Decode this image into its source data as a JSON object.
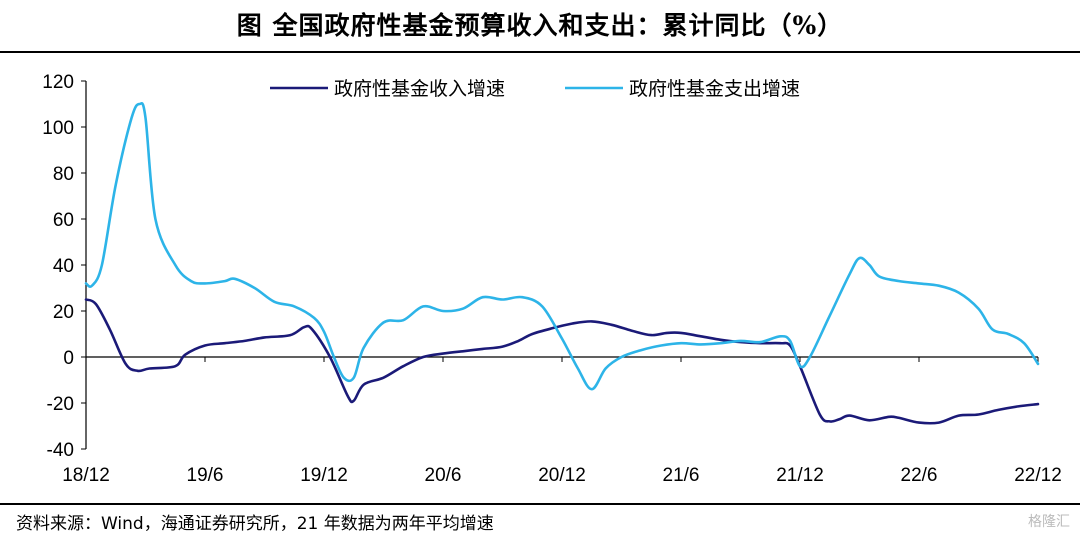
{
  "title": "图  全国政府性基金预算收入和支出：累计同比（%）",
  "source": "资料来源：Wind，海通证券研究所，21 年数据为两年平均增速",
  "watermark": "格隆汇",
  "chart_data": {
    "type": "line",
    "title": "",
    "xlabel": "",
    "ylabel": "",
    "ylim": [
      -40,
      120
    ],
    "yticks": [
      -40,
      -20,
      0,
      20,
      40,
      60,
      80,
      100,
      120
    ],
    "xlim": [
      "2018-12",
      "2022-12"
    ],
    "xticks": [
      "18/12",
      "19/6",
      "19/12",
      "20/6",
      "20/12",
      "21/6",
      "21/12",
      "22/6",
      "22/12"
    ],
    "grid": false,
    "legend_position": "top",
    "series": [
      {
        "name": "政府性基金收入增速",
        "color": "#1b1a78",
        "points": [
          [
            0.0,
            25
          ],
          [
            0.5,
            23
          ],
          [
            1.2,
            12
          ],
          [
            2.0,
            -3
          ],
          [
            2.6,
            -6
          ],
          [
            3.2,
            -5
          ],
          [
            4.5,
            -4
          ],
          [
            5.0,
            1
          ],
          [
            6.0,
            5
          ],
          [
            7.0,
            6
          ],
          [
            8.0,
            7
          ],
          [
            9.0,
            8.5
          ],
          [
            10.3,
            9.5
          ],
          [
            11.0,
            13
          ],
          [
            11.4,
            12
          ],
          [
            12.3,
            0
          ],
          [
            13.2,
            -17
          ],
          [
            13.5,
            -19
          ],
          [
            14.0,
            -12
          ],
          [
            15.0,
            -9
          ],
          [
            16.0,
            -4
          ],
          [
            17.0,
            0
          ],
          [
            18.0,
            1.5
          ],
          [
            19.0,
            2.5
          ],
          [
            20.0,
            3.5
          ],
          [
            21.0,
            4.5
          ],
          [
            21.8,
            7
          ],
          [
            22.5,
            10
          ],
          [
            23.5,
            12.5
          ],
          [
            24.5,
            14.5
          ],
          [
            25.5,
            15.5
          ],
          [
            26.5,
            14
          ],
          [
            27.5,
            11.5
          ],
          [
            28.5,
            9.5
          ],
          [
            29.3,
            10.5
          ],
          [
            30.0,
            10.5
          ],
          [
            31.0,
            9
          ],
          [
            32.0,
            7.5
          ],
          [
            33.0,
            6.5
          ],
          [
            34.0,
            6
          ],
          [
            35.0,
            6
          ],
          [
            35.5,
            5
          ],
          [
            36.0,
            -4
          ],
          [
            37.0,
            -25
          ],
          [
            37.5,
            -28
          ],
          [
            38.0,
            -27
          ],
          [
            38.5,
            -25.5
          ],
          [
            39.5,
            -27.5
          ],
          [
            40.5,
            -26
          ],
          [
            41.0,
            -26.5
          ],
          [
            42.0,
            -28.5
          ],
          [
            43.0,
            -28.5
          ],
          [
            44.0,
            -25.5
          ],
          [
            45.0,
            -25
          ],
          [
            46.0,
            -23
          ],
          [
            47.0,
            -21.5
          ],
          [
            48.0,
            -20.5
          ]
        ]
      },
      {
        "name": "政府性基金支出增速",
        "color": "#2db4e8",
        "points": [
          [
            0.0,
            32
          ],
          [
            0.3,
            31
          ],
          [
            0.8,
            40
          ],
          [
            1.5,
            75
          ],
          [
            2.3,
            104
          ],
          [
            2.7,
            110
          ],
          [
            3.0,
            104
          ],
          [
            3.5,
            60
          ],
          [
            4.5,
            40
          ],
          [
            5.3,
            33
          ],
          [
            6.0,
            32
          ],
          [
            7.0,
            33
          ],
          [
            7.5,
            34
          ],
          [
            8.5,
            30
          ],
          [
            9.5,
            24
          ],
          [
            10.5,
            22
          ],
          [
            11.5,
            17
          ],
          [
            12.0,
            11
          ],
          [
            12.5,
            0
          ],
          [
            13.0,
            -9
          ],
          [
            13.5,
            -9
          ],
          [
            14.0,
            4
          ],
          [
            15.0,
            15
          ],
          [
            16.0,
            16
          ],
          [
            17.0,
            22
          ],
          [
            18.0,
            20
          ],
          [
            19.0,
            21
          ],
          [
            20.0,
            26
          ],
          [
            21.0,
            25
          ],
          [
            22.0,
            26
          ],
          [
            23.0,
            22
          ],
          [
            24.0,
            8
          ],
          [
            24.8,
            -5
          ],
          [
            25.5,
            -14
          ],
          [
            26.2,
            -5
          ],
          [
            27.0,
            0
          ],
          [
            28.0,
            3
          ],
          [
            29.0,
            5
          ],
          [
            30.0,
            6
          ],
          [
            31.0,
            5.5
          ],
          [
            32.0,
            6
          ],
          [
            33.0,
            7
          ],
          [
            34.0,
            6.5
          ],
          [
            35.0,
            9
          ],
          [
            35.5,
            7
          ],
          [
            36.0,
            -4
          ],
          [
            36.5,
            0
          ],
          [
            37.5,
            18
          ],
          [
            38.5,
            36
          ],
          [
            39.0,
            43
          ],
          [
            39.5,
            40
          ],
          [
            40.0,
            35
          ],
          [
            41.0,
            33
          ],
          [
            42.0,
            32
          ],
          [
            43.0,
            31
          ],
          [
            44.0,
            28
          ],
          [
            45.0,
            21
          ],
          [
            45.7,
            12
          ],
          [
            46.5,
            10
          ],
          [
            47.3,
            6
          ],
          [
            48.0,
            -3
          ]
        ]
      }
    ]
  }
}
